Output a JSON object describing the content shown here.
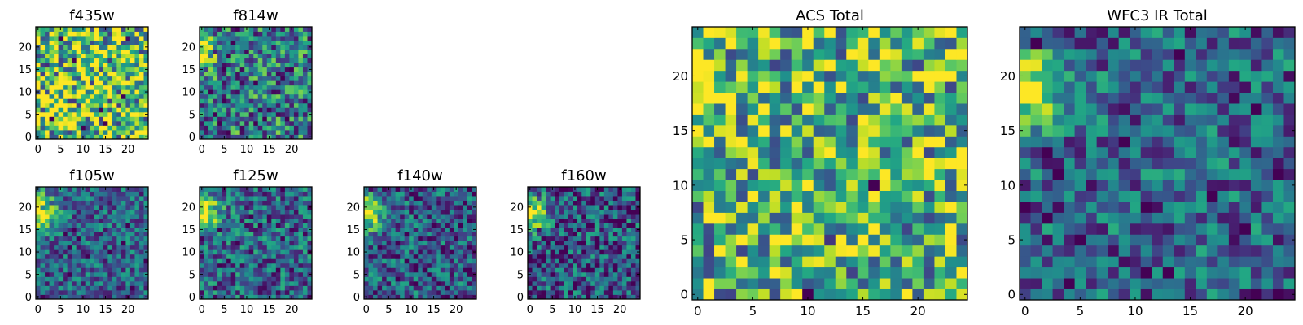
{
  "chart_data": [
    {
      "type": "heatmap",
      "title": "f435w",
      "x_ticks": [
        "0",
        "5",
        "10",
        "15",
        "20"
      ],
      "y_ticks": [
        "0",
        "5",
        "10",
        "15",
        "20"
      ],
      "xlim": [
        0,
        25
      ],
      "ylim": [
        0,
        25
      ],
      "grid": "off",
      "colormap": "viridis",
      "pattern": {
        "kind": "noise",
        "base": 0.72,
        "spread": 0.55,
        "seed": 11,
        "blob": null
      }
    },
    {
      "type": "heatmap",
      "title": "f814w",
      "x_ticks": [
        "0",
        "5",
        "10",
        "15",
        "20"
      ],
      "y_ticks": [
        "0",
        "5",
        "10",
        "15",
        "20"
      ],
      "xlim": [
        0,
        25
      ],
      "ylim": [
        0,
        25
      ],
      "grid": "off",
      "colormap": "viridis",
      "pattern": {
        "kind": "noise",
        "base": 0.42,
        "spread": 0.4,
        "seed": 23,
        "blob": {
          "x": 0.5,
          "y": 20.5,
          "sigma": 2.2,
          "amp": 0.65
        }
      }
    },
    {
      "type": "heatmap",
      "title": "f105w",
      "x_ticks": [
        "0",
        "5",
        "10",
        "15",
        "20"
      ],
      "y_ticks": [
        "0",
        "5",
        "10",
        "15",
        "20"
      ],
      "xlim": [
        0,
        25
      ],
      "ylim": [
        0,
        25
      ],
      "grid": "off",
      "colormap": "viridis",
      "pattern": {
        "kind": "noise",
        "base": 0.33,
        "spread": 0.28,
        "seed": 37,
        "blob": {
          "x": 0.5,
          "y": 19.5,
          "sigma": 2.6,
          "amp": 0.75
        }
      }
    },
    {
      "type": "heatmap",
      "title": "f125w",
      "x_ticks": [
        "0",
        "5",
        "10",
        "15",
        "20"
      ],
      "y_ticks": [
        "0",
        "5",
        "10",
        "15",
        "20"
      ],
      "xlim": [
        0,
        25
      ],
      "ylim": [
        0,
        25
      ],
      "grid": "off",
      "colormap": "viridis",
      "pattern": {
        "kind": "noise",
        "base": 0.33,
        "spread": 0.32,
        "seed": 41,
        "blob": {
          "x": 0.5,
          "y": 19.5,
          "sigma": 2.6,
          "amp": 0.75
        }
      }
    },
    {
      "type": "heatmap",
      "title": "f140w",
      "x_ticks": [
        "0",
        "5",
        "10",
        "15",
        "20"
      ],
      "y_ticks": [
        "0",
        "5",
        "10",
        "15",
        "20"
      ],
      "xlim": [
        0,
        25
      ],
      "ylim": [
        0,
        25
      ],
      "grid": "off",
      "colormap": "viridis",
      "pattern": {
        "kind": "noise",
        "base": 0.3,
        "spread": 0.32,
        "seed": 53,
        "blob": {
          "x": 0.5,
          "y": 19.5,
          "sigma": 2.6,
          "amp": 0.75
        }
      }
    },
    {
      "type": "heatmap",
      "title": "f160w",
      "x_ticks": [
        "0",
        "5",
        "10",
        "15",
        "20"
      ],
      "y_ticks": [
        "0",
        "5",
        "10",
        "15",
        "20"
      ],
      "xlim": [
        0,
        25
      ],
      "ylim": [
        0,
        25
      ],
      "grid": "off",
      "colormap": "viridis",
      "pattern": {
        "kind": "noise",
        "base": 0.28,
        "spread": 0.34,
        "seed": 67,
        "blob": {
          "x": 0.5,
          "y": 19.5,
          "sigma": 2.6,
          "amp": 0.75
        }
      }
    },
    {
      "type": "heatmap",
      "title": "ACS Total",
      "x_ticks": [
        "0",
        "5",
        "10",
        "15",
        "20"
      ],
      "y_ticks": [
        "0",
        "5",
        "10",
        "15",
        "20"
      ],
      "xlim": [
        0,
        25
      ],
      "ylim": [
        0,
        25
      ],
      "grid": "off",
      "colormap": "viridis",
      "pattern": {
        "kind": "noise",
        "base": 0.65,
        "spread": 0.45,
        "seed": 79,
        "blob": {
          "x": 0.5,
          "y": 19.5,
          "sigma": 1.8,
          "amp": 0.4
        }
      }
    },
    {
      "type": "heatmap",
      "title": "WFC3 IR Total",
      "x_ticks": [
        "0",
        "5",
        "10",
        "15",
        "20"
      ],
      "y_ticks": [
        "0",
        "5",
        "10",
        "15",
        "20"
      ],
      "xlim": [
        0,
        25
      ],
      "ylim": [
        0,
        25
      ],
      "grid": "off",
      "colormap": "viridis",
      "pattern": {
        "kind": "noise",
        "base": 0.33,
        "spread": 0.3,
        "seed": 83,
        "blob": {
          "x": 0.5,
          "y": 19.5,
          "sigma": 2.4,
          "amp": 0.7
        }
      }
    }
  ]
}
